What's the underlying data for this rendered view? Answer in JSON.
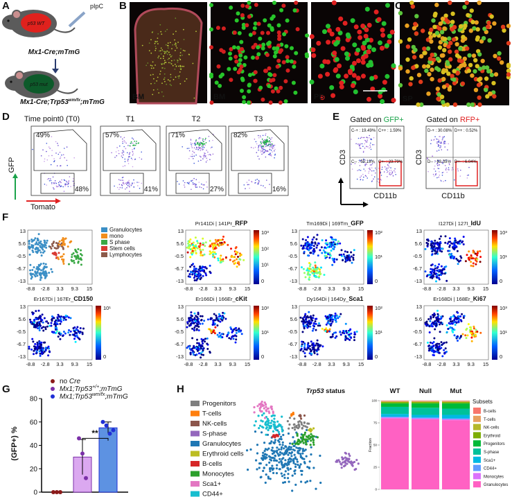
{
  "panel_labels": [
    "A",
    "B",
    "C",
    "D",
    "E",
    "F",
    "G",
    "H"
  ],
  "panel_a": {
    "treatment": "pIpC",
    "mouse_top": {
      "badge": "p53 WT",
      "genotype": "Mx1-Cre;mTmG"
    },
    "mouse_bottom": {
      "badge": "p53 mut",
      "genotype_parts": [
        "Mx1-Cre;Trp53",
        "wm/fx",
        ";mTmG"
      ]
    }
  },
  "panel_b": {
    "image_labels": [
      "BM",
      "BM",
      "PB"
    ]
  },
  "panel_c": {
    "image_label": "SP"
  },
  "panel_d": {
    "y_label": "GFP",
    "x_label": "Tomato",
    "plots": [
      {
        "title": "Time point0 (T0)",
        "upper": "49%",
        "lower": "48%"
      },
      {
        "title": "T1",
        "upper": "57%",
        "lower": "41%"
      },
      {
        "title": "T2",
        "upper": "71%",
        "lower": "27%"
      },
      {
        "title": "T3",
        "upper": "82%",
        "lower": "16%"
      }
    ]
  },
  "panel_e": {
    "y_label": "CD3",
    "x_label": "CD11b",
    "plots": [
      {
        "title_parts": [
          "Gated on ",
          "GFP+"
        ],
        "quadrants": [
          "C-+ : 19.49%",
          "C++ : 1.59%",
          "C-- : 55.13%",
          "C+- : 23.79%"
        ]
      },
      {
        "title_parts": [
          "Gated on ",
          "RFP+"
        ],
        "quadrants": [
          "D-+ : 30.08%",
          "D++ : 0.52%",
          "D-- : 63.35%",
          "D+- : 6.04%"
        ]
      }
    ]
  },
  "panel_f": {
    "xticks": [
      "-8.8",
      "-2.8",
      "3.3",
      "9.3",
      "15"
    ],
    "yticks": [
      "13",
      "5.6",
      "-0.5",
      "-6.7",
      "-13"
    ],
    "legend": [
      {
        "name": "Granulocytes",
        "color": "#3b8fc6"
      },
      {
        "name": "mono",
        "color": "#f28e1c"
      },
      {
        "name": "S phase",
        "color": "#3aa845"
      },
      {
        "name": "Stem cells",
        "color": "#d83a32"
      },
      {
        "name": "Lymphocytes",
        "color": "#8c5a4a"
      }
    ],
    "plots": [
      {
        "title_prefix": "Pr141Di | 141Pr_",
        "marker": "RFP",
        "colorbar": [
          "10³",
          "10²",
          "10¹",
          "0"
        ]
      },
      {
        "title_prefix": "Tm169Di | 169Tm_",
        "marker": "GFP",
        "colorbar": [
          "10²",
          "10¹",
          "0"
        ]
      },
      {
        "title_prefix": "I127Di | 127I_",
        "marker": "IdU",
        "colorbar": [
          "10³",
          "10¹",
          "0"
        ]
      },
      {
        "title_prefix": "Er167Di | 167Er_",
        "marker": "CD150",
        "colorbar": [
          "10¹",
          "0"
        ]
      },
      {
        "title_prefix": "Er166Di | 166Er_",
        "marker": "cKit",
        "colorbar": [
          "10²",
          "10¹",
          "0"
        ]
      },
      {
        "title_prefix": "Dy164Di | 164Dy_",
        "marker": "Sca1",
        "colorbar": [
          "10²",
          "10¹",
          "0"
        ]
      },
      {
        "title_prefix": "Er168Di | 168Er_",
        "marker": "Ki67",
        "colorbar": [
          "10³",
          "10¹",
          "0"
        ]
      }
    ]
  },
  "panel_g": {
    "type": "bar",
    "y_label": "(GFP+) %",
    "ylim": [
      0,
      80
    ],
    "yticks": [
      0,
      20,
      40,
      60,
      80
    ],
    "significance": "**",
    "series": [
      {
        "name_parts": [
          "no ",
          "Cre"
        ],
        "color": "#8b1a1a",
        "fill": "#8b1a1a",
        "values": [
          0
        ],
        "errors": [
          0
        ],
        "points": [
          0,
          0,
          0
        ]
      },
      {
        "name_parts": [
          "Mx1;Trp53",
          "+/+",
          ";mTmG"
        ],
        "color": "#7b2fa8",
        "fill": "#dba8f0",
        "values": [
          30
        ],
        "errors": [
          15
        ],
        "points": [
          46,
          33,
          12
        ]
      },
      {
        "name_parts": [
          "Mx1;Trp53",
          "wm/fx",
          ";mTmG"
        ],
        "color": "#1f2fd6",
        "fill": "#5d92e2",
        "values": [
          55
        ],
        "errors": [
          5
        ],
        "points": [
          60,
          57,
          50,
          53
        ]
      }
    ]
  },
  "panel_h": {
    "legend": [
      {
        "name": "Progenitors",
        "color": "#7f7f7f"
      },
      {
        "name": "T-cells",
        "color": "#ff7f0e"
      },
      {
        "name": "NK-cells",
        "color": "#8c564b"
      },
      {
        "name": "S-phase",
        "color": "#9467bd"
      },
      {
        "name": "Granulocytes",
        "color": "#1f77b4"
      },
      {
        "name": "Erythroid cells",
        "color": "#bcbd22"
      },
      {
        "name": "B-cells",
        "color": "#d62728"
      },
      {
        "name": "Monocytes",
        "color": "#2ca02c"
      },
      {
        "name": "Sca1+",
        "color": "#e377c2"
      },
      {
        "name": "CD44+",
        "color": "#17becf"
      }
    ],
    "status_label_parts": [
      "Trp53",
      " status"
    ],
    "groups": [
      "WT",
      "Null",
      "Mut"
    ],
    "y_label": "Fraction",
    "ylim": [
      0,
      100
    ],
    "yticks": [
      0,
      25,
      50,
      75,
      100
    ],
    "subsets_title": "Subsets",
    "subsets": [
      {
        "name": "B-cells",
        "color": "#f8766d",
        "values": [
          0.5,
          0.5,
          0.5
        ]
      },
      {
        "name": "T-cells",
        "color": "#e8a060",
        "values": [
          0.5,
          0.5,
          0.5
        ]
      },
      {
        "name": "NK-cells",
        "color": "#b5b82a",
        "values": [
          0.5,
          0.5,
          0.5
        ]
      },
      {
        "name": "Erythroid",
        "color": "#7cae00",
        "values": [
          1.5,
          1.5,
          1.5
        ]
      },
      {
        "name": "Progenitors",
        "color": "#00ba38",
        "values": [
          4,
          5,
          6
        ]
      },
      {
        "name": "S-phase",
        "color": "#00c19a",
        "values": [
          8,
          8,
          7
        ]
      },
      {
        "name": "Sca1+",
        "color": "#00b9e3",
        "values": [
          3,
          3,
          4
        ]
      },
      {
        "name": "CD44+",
        "color": "#619cff",
        "values": [
          1,
          1,
          1
        ]
      },
      {
        "name": "Monocytes",
        "color": "#db72fb",
        "values": [
          1,
          1,
          1
        ]
      },
      {
        "name": "Granulocytes",
        "color": "#ff61c3",
        "values": [
          80,
          79,
          78
        ]
      }
    ]
  }
}
